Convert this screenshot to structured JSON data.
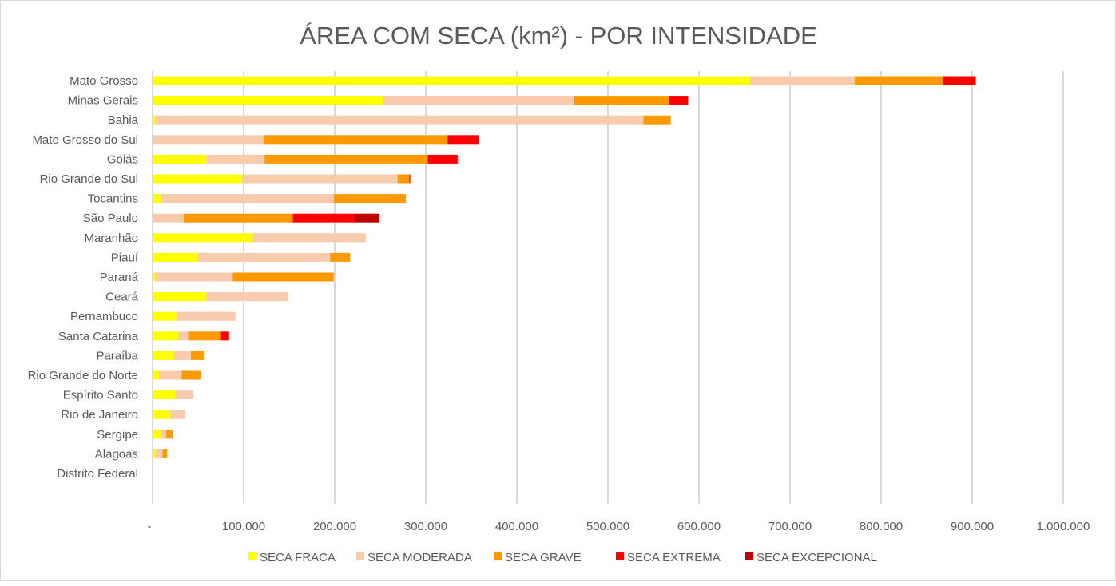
{
  "chart_data": {
    "type": "bar",
    "orientation": "horizontal",
    "stacked": true,
    "title": "ÁREA COM SECA (km²) - POR INTENSIDADE",
    "categories": [
      "Mato Grosso",
      "Minas Gerais",
      "Bahia",
      "Mato Grosso do Sul",
      "Goiás",
      "Rio Grande do Sul",
      "Tocantins",
      "São Paulo",
      "Maranhão",
      "Piauí",
      "Paraná",
      "Ceará",
      "Pernambuco",
      "Santa Catarina",
      "Paraíba",
      "Rio Grande do Norte",
      "Espírito Santo",
      "Rio de Janeiro",
      "Sergipe",
      "Alagoas",
      "Distrito Federal"
    ],
    "series": [
      {
        "name": "SECA FRACA",
        "color": "#ffff00",
        "values": [
          656000,
          253000,
          3000,
          0,
          59000,
          98000,
          9000,
          0,
          110000,
          50000,
          3000,
          59000,
          26000,
          28000,
          23000,
          7000,
          25000,
          19000,
          9000,
          3000,
          0
        ]
      },
      {
        "name": "SECA MODERADA",
        "color": "#f8cbad",
        "values": [
          115000,
          210000,
          536000,
          122000,
          64000,
          171000,
          190000,
          34000,
          124000,
          145000,
          85000,
          90000,
          65000,
          11000,
          19000,
          25000,
          20000,
          17000,
          6000,
          8000,
          0
        ]
      },
      {
        "name": "SECA GRAVE",
        "color": "#ff9900",
        "values": [
          97000,
          104000,
          30000,
          202000,
          179000,
          13000,
          79000,
          120000,
          0,
          22000,
          111000,
          0,
          0,
          36000,
          14000,
          21000,
          0,
          0,
          7000,
          5000,
          0
        ]
      },
      {
        "name": "SECA EXTREMA",
        "color": "#ff0000",
        "values": [
          36000,
          21000,
          0,
          34000,
          33000,
          1000,
          0,
          67000,
          0,
          0,
          0,
          0,
          0,
          9000,
          0,
          0,
          0,
          0,
          0,
          0,
          0
        ]
      },
      {
        "name": "SECA EXCEPCIONAL",
        "color": "#c00000",
        "values": [
          0,
          0,
          0,
          0,
          0,
          0,
          0,
          28000,
          0,
          0,
          0,
          0,
          0,
          0,
          0,
          0,
          0,
          0,
          0,
          0,
          0
        ]
      }
    ],
    "xlim": [
      0,
      1000000
    ],
    "xticks": [
      0,
      100000,
      200000,
      300000,
      400000,
      500000,
      600000,
      700000,
      800000,
      900000,
      1000000
    ],
    "xtick_labels": [
      "-",
      "100.000",
      "200.000",
      "300.000",
      "400.000",
      "500.000",
      "600.000",
      "700.000",
      "800.000",
      "900.000",
      "1.000.000"
    ],
    "grid": "vertical",
    "legend": "bottom"
  }
}
